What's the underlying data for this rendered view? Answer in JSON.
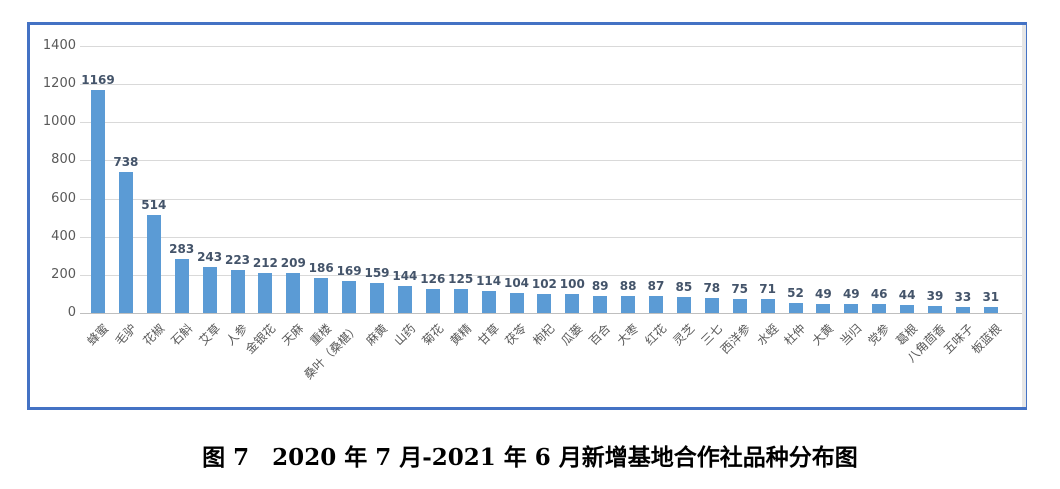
{
  "figure": {
    "caption": "图 7　2020 年 7 月-2021 年 6 月新增基地合作社品种分布图"
  },
  "chart_data": {
    "type": "bar",
    "title": "2020年7月-2021年6月新增基地合作社品种分布图",
    "categories": [
      "蜂蜜",
      "毛驴",
      "花椒",
      "石斛",
      "艾草",
      "人参",
      "金银花",
      "天麻",
      "重楼",
      "桑叶（桑椹）",
      "麻黄",
      "山药",
      "菊花",
      "黄精",
      "甘草",
      "茯苓",
      "枸杞",
      "瓜蒌",
      "百合",
      "大枣",
      "红花",
      "灵芝",
      "三七",
      "西洋参",
      "水蛭",
      "杜仲",
      "大黄",
      "当归",
      "党参",
      "葛根",
      "八角茴香",
      "五味子",
      "板蓝根"
    ],
    "values": [
      1169,
      738,
      514,
      283,
      243,
      223,
      212,
      209,
      186,
      169,
      159,
      144,
      126,
      125,
      114,
      104,
      102,
      100,
      89,
      88,
      87,
      85,
      78,
      75,
      71,
      52,
      49,
      49,
      46,
      44,
      39,
      33,
      31
    ],
    "xlabel": "",
    "ylabel": "",
    "ylim": [
      0,
      1400
    ],
    "yticks": [
      0,
      200,
      400,
      600,
      800,
      1000,
      1200,
      1400
    ],
    "grid": true,
    "legend": "none",
    "data_labels": true,
    "colors": {
      "bar": "#5B9BD5",
      "frame_border": "#4472C4",
      "gridline": "#D9D9D9",
      "axis_line": "#BFBFBF",
      "value_label": "#44546A",
      "tick_label": "#595959"
    }
  }
}
